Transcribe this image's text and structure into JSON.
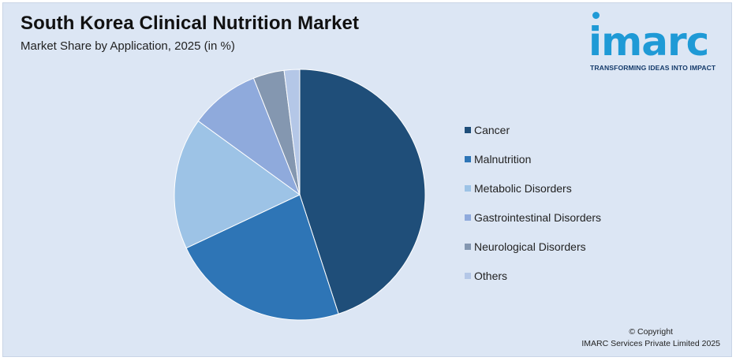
{
  "header": {
    "title": "South Korea Clinical Nutrition Market",
    "subtitle": "Market Share by Application, 2025 (in %)"
  },
  "logo": {
    "wordmark": "imarc",
    "tagline": "TRANSFORMING IDEAS INTO IMPACT",
    "color": "#1f9ad6"
  },
  "footer": {
    "copyright_line1": "© Copyright",
    "copyright_line2": "IMARC Services Private Limited 2025"
  },
  "chart_data": {
    "type": "pie",
    "title": "South Korea Clinical Nutrition Market",
    "subtitle": "Market Share by Application, 2025 (in %)",
    "legend_position": "right",
    "start_angle_deg": 0,
    "direction": "clockwise",
    "slices": [
      {
        "label": "Cancer",
        "value": 45,
        "color": "#1f4e79"
      },
      {
        "label": "Malnutrition",
        "value": 23,
        "color": "#2e75b6"
      },
      {
        "label": "Metabolic Disorders",
        "value": 17,
        "color": "#9dc3e6"
      },
      {
        "label": "Gastrointestinal Disorders",
        "value": 9,
        "color": "#8faadc"
      },
      {
        "label": "Neurological Disorders",
        "value": 4,
        "color": "#8497b0"
      },
      {
        "label": "Others",
        "value": 2,
        "color": "#b4c7e7"
      }
    ]
  }
}
